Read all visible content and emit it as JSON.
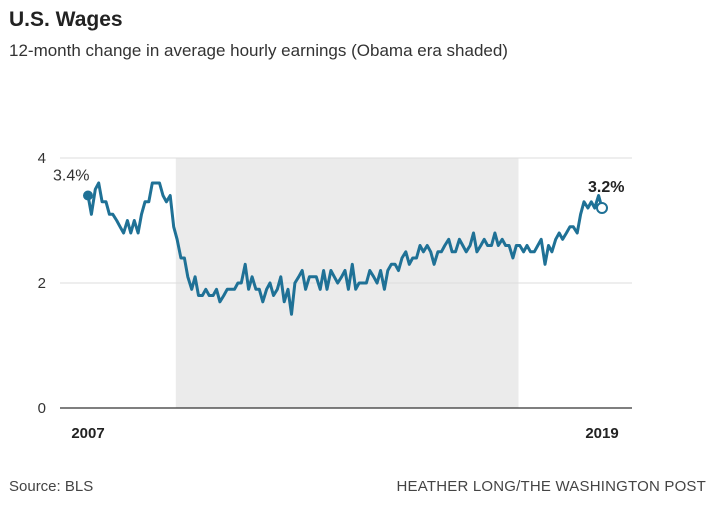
{
  "header": {
    "title": "U.S. Wages",
    "subtitle": "12-month change in average hourly earnings (Obama era shaded)"
  },
  "footer": {
    "source": "Source: BLS",
    "credit": "HEATHER LONG/THE WASHINGTON POST"
  },
  "chart_data": {
    "type": "line",
    "title": "U.S. Wages",
    "subtitle": "12-month change in average hourly earnings (Obama era shaded)",
    "xlabel": "",
    "ylabel": "",
    "xlim": [
      2007.0,
      2019.0
    ],
    "ylim": [
      0,
      4
    ],
    "y_ticks": [
      0,
      2,
      4
    ],
    "y_tick_labels": [
      "0",
      "2",
      "4"
    ],
    "x_tick_labels": [
      {
        "x": 2007.0,
        "label": "2007"
      },
      {
        "x": 2019.0,
        "label": "2019"
      }
    ],
    "grid": true,
    "shaded_region": {
      "x_start": 2009.05,
      "x_end": 2017.05
    },
    "annotations": [
      {
        "label": "3.4%",
        "x": 2007.0,
        "y": 3.4,
        "marker": "filled"
      },
      {
        "label": "3.2%",
        "x": 2019.0,
        "y": 3.2,
        "marker": "open"
      }
    ],
    "colors": {
      "line": "#1f7196",
      "shade": "#ebebeb",
      "grid": "#dddddd"
    },
    "series": [
      {
        "x": [
          2007.0,
          2007.08,
          2007.17,
          2007.25,
          2007.33,
          2007.42,
          2007.5,
          2007.58,
          2007.67,
          2007.75,
          2007.83,
          2007.92,
          2008.0,
          2008.08,
          2008.17,
          2008.25,
          2008.33,
          2008.42,
          2008.5,
          2008.58,
          2008.67,
          2008.75,
          2008.83,
          2008.92,
          2009.0,
          2009.08,
          2009.17,
          2009.25,
          2009.33,
          2009.42,
          2009.5,
          2009.58,
          2009.67,
          2009.75,
          2009.83,
          2009.92,
          2010.0,
          2010.08,
          2010.17,
          2010.25,
          2010.33,
          2010.42,
          2010.5,
          2010.58,
          2010.67,
          2010.75,
          2010.83,
          2010.92,
          2011.0,
          2011.08,
          2011.17,
          2011.25,
          2011.33,
          2011.42,
          2011.5,
          2011.58,
          2011.67,
          2011.75,
          2011.83,
          2011.92,
          2012.0,
          2012.08,
          2012.17,
          2012.25,
          2012.33,
          2012.42,
          2012.5,
          2012.58,
          2012.67,
          2012.75,
          2012.83,
          2012.92,
          2013.0,
          2013.08,
          2013.17,
          2013.25,
          2013.33,
          2013.42,
          2013.5,
          2013.58,
          2013.67,
          2013.75,
          2013.83,
          2013.92,
          2014.0,
          2014.08,
          2014.17,
          2014.25,
          2014.33,
          2014.42,
          2014.5,
          2014.58,
          2014.67,
          2014.75,
          2014.83,
          2014.92,
          2015.0,
          2015.08,
          2015.17,
          2015.25,
          2015.33,
          2015.42,
          2015.5,
          2015.58,
          2015.67,
          2015.75,
          2015.83,
          2015.92,
          2016.0,
          2016.08,
          2016.17,
          2016.25,
          2016.33,
          2016.42,
          2016.5,
          2016.58,
          2016.67,
          2016.75,
          2016.83,
          2016.92,
          2017.0,
          2017.08,
          2017.17,
          2017.25,
          2017.33,
          2017.42,
          2017.5,
          2017.58,
          2017.67,
          2017.75,
          2017.83,
          2017.92,
          2018.0,
          2018.08,
          2018.17,
          2018.25,
          2018.33,
          2018.42,
          2018.5,
          2018.58,
          2018.67,
          2018.75,
          2018.83,
          2018.92,
          2019.0
        ],
        "values": [
          3.4,
          3.1,
          3.5,
          3.6,
          3.3,
          3.3,
          3.1,
          3.1,
          3.0,
          2.9,
          2.8,
          3.0,
          2.8,
          3.0,
          2.8,
          3.1,
          3.3,
          3.3,
          3.6,
          3.6,
          3.6,
          3.4,
          3.3,
          3.4,
          2.9,
          2.7,
          2.4,
          2.4,
          2.1,
          1.9,
          2.1,
          1.8,
          1.8,
          1.9,
          1.8,
          1.8,
          1.9,
          1.7,
          1.8,
          1.9,
          1.9,
          1.9,
          2.0,
          2.0,
          2.3,
          1.9,
          2.1,
          1.9,
          1.9,
          1.7,
          1.9,
          2.0,
          1.8,
          1.9,
          2.1,
          1.7,
          1.9,
          1.5,
          2.0,
          2.1,
          2.2,
          1.9,
          2.1,
          2.1,
          2.1,
          1.9,
          2.2,
          1.9,
          2.2,
          2.1,
          2.0,
          2.1,
          2.2,
          1.9,
          2.3,
          1.9,
          2.0,
          2.0,
          2.0,
          2.2,
          2.1,
          2.0,
          2.2,
          1.9,
          2.2,
          2.3,
          2.3,
          2.2,
          2.4,
          2.5,
          2.3,
          2.4,
          2.4,
          2.6,
          2.5,
          2.6,
          2.5,
          2.3,
          2.5,
          2.5,
          2.6,
          2.7,
          2.5,
          2.5,
          2.7,
          2.6,
          2.5,
          2.6,
          2.8,
          2.5,
          2.6,
          2.7,
          2.6,
          2.6,
          2.8,
          2.6,
          2.7,
          2.6,
          2.6,
          2.4,
          2.6,
          2.6,
          2.5,
          2.6,
          2.5,
          2.5,
          2.6,
          2.7,
          2.3,
          2.6,
          2.5,
          2.7,
          2.8,
          2.7,
          2.8,
          2.9,
          2.9,
          2.8,
          3.1,
          3.3,
          3.2,
          3.3,
          3.2,
          3.4,
          3.2
        ]
      }
    ]
  }
}
